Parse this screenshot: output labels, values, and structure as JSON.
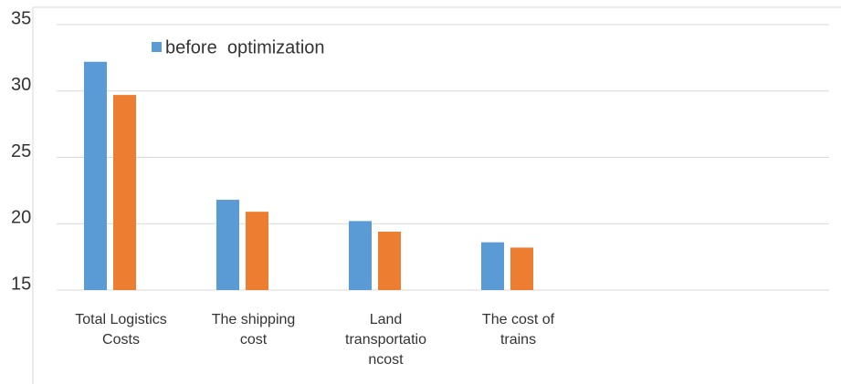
{
  "chart_data": {
    "type": "bar",
    "categories": [
      "Total Logistics\nCosts",
      "The shipping\ncost",
      "Land\ntransportatio\nncost",
      "The cost of\ntrains"
    ],
    "series": [
      {
        "name": "before  optimization",
        "color": "#5b9bd5",
        "values": [
          32.2,
          21.8,
          20.2,
          18.6
        ]
      },
      {
        "name": null,
        "color": "#ed7d31",
        "values": [
          29.7,
          20.9,
          19.4,
          18.2
        ]
      }
    ],
    "ylim": [
      15,
      35
    ],
    "yticks": [
      15,
      20,
      25,
      30,
      35
    ],
    "grid": true,
    "legend": "top"
  }
}
